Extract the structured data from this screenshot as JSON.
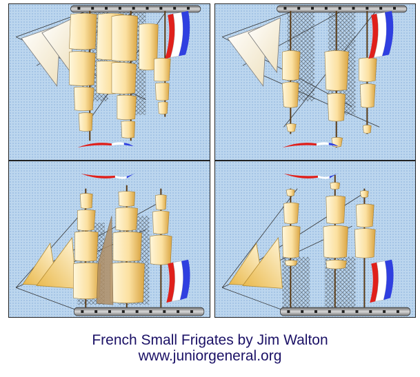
{
  "caption": {
    "title": "French Small Frigates by Jim Walton",
    "website": "www.juniorgeneral.org"
  },
  "colors": {
    "background_blue": "#bcd6ee",
    "sail_cream": "#fbe8b6",
    "sail_shade": "#d9a441",
    "hull_gray": "#9a9a9a",
    "flag_red": "#e0201b",
    "flag_white": "#ffffff",
    "flag_blue": "#2f3fe0",
    "caption_text": "#1b1166"
  },
  "panels": [
    {
      "id": "full-sail-top",
      "sails": "full",
      "orientation": "hull-top"
    },
    {
      "id": "reduced-sail-top",
      "sails": "reduced",
      "orientation": "hull-top"
    },
    {
      "id": "full-sail-bottom",
      "sails": "full",
      "orientation": "hull-bottom"
    },
    {
      "id": "reduced-sail-bottom",
      "sails": "reduced",
      "orientation": "hull-bottom"
    }
  ]
}
